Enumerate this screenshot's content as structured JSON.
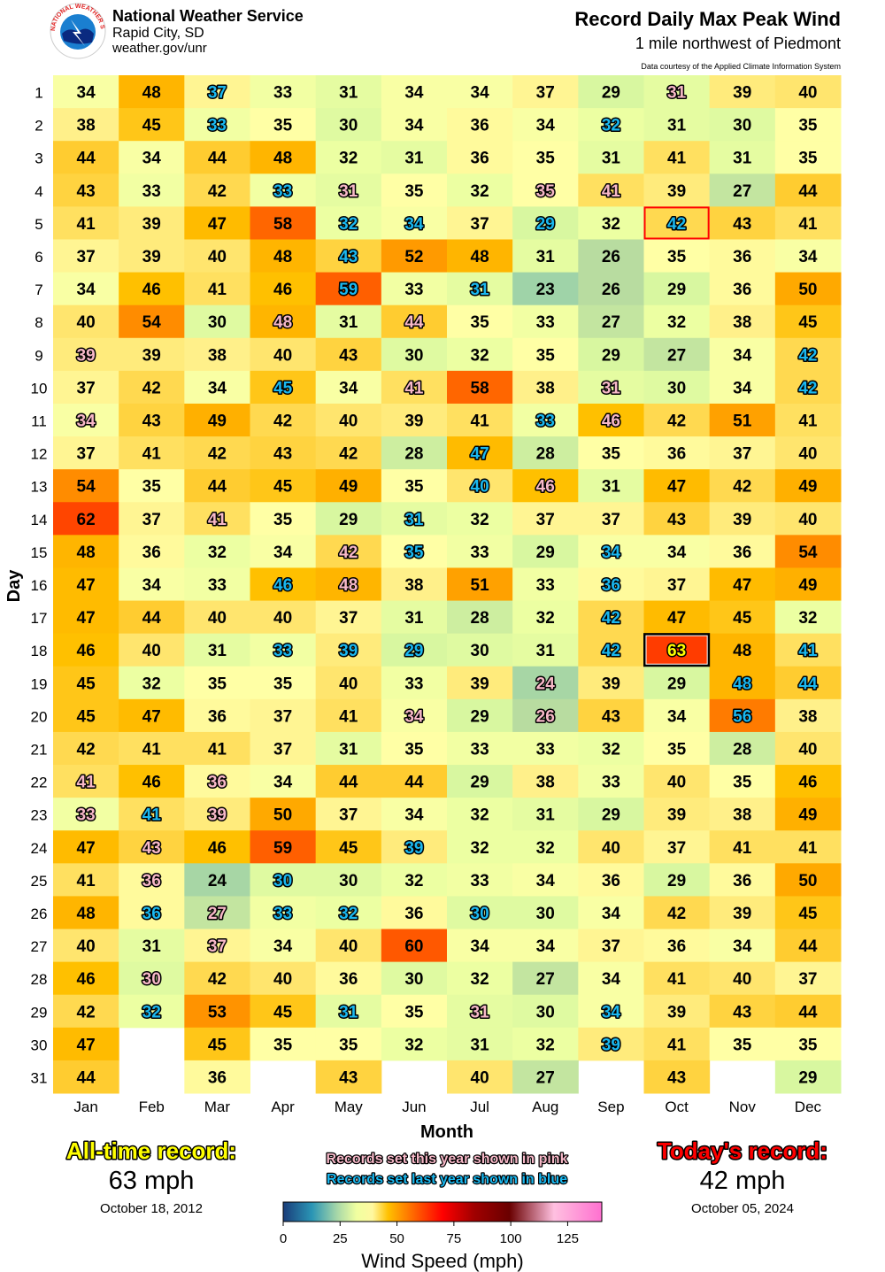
{
  "header": {
    "org": "National Weather Service",
    "office": "Rapid City, SD",
    "url": "weather.gov/unr",
    "logo_text": "NATIONAL WEATHER SERVICE",
    "title": "Record Daily Max Peak Wind",
    "subtitle": "1 mile northwest of Piedmont",
    "courtesy": "Data courtesy of the Applied Climate Information System"
  },
  "chart_data": {
    "type": "heatmap",
    "title": "Record Daily Max Peak Wind",
    "xlabel": "Month",
    "ylabel": "Day",
    "months": [
      "Jan",
      "Feb",
      "Mar",
      "Apr",
      "May",
      "Jun",
      "Jul",
      "Aug",
      "Sep",
      "Oct",
      "Nov",
      "Dec"
    ],
    "days": [
      1,
      2,
      3,
      4,
      5,
      6,
      7,
      8,
      9,
      10,
      11,
      12,
      13,
      14,
      15,
      16,
      17,
      18,
      19,
      20,
      21,
      22,
      23,
      24,
      25,
      26,
      27,
      28,
      29,
      30,
      31
    ],
    "values": [
      [
        34,
        48,
        37,
        33,
        31,
        34,
        34,
        37,
        29,
        31,
        39,
        40
      ],
      [
        38,
        45,
        33,
        35,
        30,
        34,
        36,
        34,
        32,
        31,
        30,
        35
      ],
      [
        44,
        34,
        44,
        48,
        32,
        31,
        36,
        35,
        31,
        41,
        31,
        35
      ],
      [
        43,
        33,
        42,
        33,
        31,
        35,
        32,
        35,
        41,
        39,
        27,
        44
      ],
      [
        41,
        39,
        47,
        58,
        32,
        34,
        37,
        29,
        32,
        42,
        43,
        41
      ],
      [
        37,
        39,
        40,
        48,
        43,
        52,
        48,
        31,
        26,
        35,
        36,
        34
      ],
      [
        34,
        46,
        41,
        46,
        59,
        33,
        31,
        23,
        26,
        29,
        36,
        50
      ],
      [
        40,
        54,
        30,
        48,
        31,
        44,
        35,
        33,
        27,
        32,
        38,
        45
      ],
      [
        39,
        39,
        38,
        40,
        43,
        30,
        32,
        35,
        29,
        27,
        34,
        42
      ],
      [
        37,
        42,
        34,
        45,
        34,
        41,
        58,
        38,
        31,
        30,
        34,
        42
      ],
      [
        34,
        43,
        49,
        42,
        40,
        39,
        41,
        33,
        46,
        42,
        51,
        41
      ],
      [
        37,
        41,
        42,
        43,
        42,
        28,
        47,
        28,
        35,
        36,
        37,
        40
      ],
      [
        54,
        35,
        44,
        45,
        49,
        35,
        40,
        46,
        31,
        47,
        42,
        49
      ],
      [
        62,
        37,
        41,
        35,
        29,
        31,
        32,
        37,
        37,
        43,
        39,
        40
      ],
      [
        48,
        36,
        32,
        34,
        42,
        35,
        33,
        29,
        34,
        34,
        36,
        54
      ],
      [
        47,
        34,
        33,
        46,
        48,
        38,
        51,
        33,
        36,
        37,
        47,
        49
      ],
      [
        47,
        44,
        40,
        40,
        37,
        31,
        28,
        32,
        42,
        47,
        45,
        32
      ],
      [
        46,
        40,
        31,
        33,
        39,
        29,
        30,
        31,
        42,
        63,
        48,
        41
      ],
      [
        45,
        32,
        35,
        35,
        40,
        33,
        39,
        24,
        39,
        29,
        48,
        44
      ],
      [
        45,
        47,
        36,
        37,
        41,
        34,
        29,
        26,
        43,
        34,
        56,
        38
      ],
      [
        42,
        41,
        41,
        37,
        31,
        35,
        33,
        33,
        32,
        35,
        28,
        40
      ],
      [
        41,
        46,
        36,
        34,
        44,
        44,
        29,
        38,
        33,
        40,
        35,
        46
      ],
      [
        33,
        41,
        39,
        50,
        37,
        34,
        32,
        31,
        29,
        39,
        38,
        49
      ],
      [
        47,
        43,
        46,
        59,
        45,
        39,
        32,
        32,
        40,
        37,
        41,
        41
      ],
      [
        41,
        36,
        24,
        30,
        30,
        32,
        33,
        34,
        36,
        29,
        36,
        50
      ],
      [
        48,
        36,
        27,
        33,
        32,
        36,
        30,
        30,
        34,
        42,
        39,
        45
      ],
      [
        40,
        31,
        37,
        34,
        40,
        60,
        34,
        34,
        37,
        36,
        34,
        44
      ],
      [
        46,
        30,
        42,
        40,
        36,
        30,
        32,
        27,
        34,
        41,
        40,
        37
      ],
      [
        42,
        32,
        53,
        45,
        31,
        35,
        31,
        30,
        34,
        39,
        43,
        44
      ],
      [
        47,
        null,
        45,
        35,
        35,
        32,
        31,
        32,
        39,
        41,
        35,
        35
      ],
      [
        44,
        null,
        36,
        null,
        43,
        null,
        40,
        27,
        null,
        43,
        null,
        29
      ]
    ],
    "record_marks_legend": {
      "p": "set this year",
      "b": "set last year",
      "r": "all-time record"
    },
    "record_marks": [
      "..b......p..",
      "..b.....b...",
      "............",
      "...bp..pp...",
      "....bb.b.b..",
      "....b.......",
      "....b.b.....",
      "...p.p......",
      "p..........b",
      "...b.p..p..b",
      "p......bp...",
      "......b.....",
      "......bp....",
      "..p..b......",
      "....pb..b...",
      "...bp...b...",
      "........b...",
      "...bbb..br.b",
      ".......p..bb",
      ".....p.p..b.",
      "............",
      "p.p.........",
      "pbp.........",
      ".p...b......",
      ".p.b........",
      ".bpbb.b.....",
      "..p.........",
      ".p..........",
      ".b..b.p.b...",
      "........b...",
      "............"
    ],
    "all_time_record_cell": {
      "month": "Oct",
      "day": 18
    },
    "todays_record_cell": {
      "month": "Oct",
      "day": 5
    },
    "colorbar": {
      "label": "Wind Speed (mph)",
      "range": [
        0,
        140
      ],
      "ticks": [
        0,
        25,
        50,
        75,
        100,
        125
      ]
    }
  },
  "legend": {
    "pink_note": "Records set this year shown in pink",
    "blue_note": "Records set last year shown in blue"
  },
  "all_time": {
    "heading": "All-time record:",
    "value": "63 mph",
    "date": "October 18, 2012"
  },
  "today": {
    "heading": "Today's record:",
    "value": "42 mph",
    "date": "October 05, 2024"
  },
  "colors": {
    "pink": "#f7b8c8",
    "blue": "#1ab8f0",
    "record_yellow": "#ffff00",
    "today_red": "#ff0000"
  }
}
